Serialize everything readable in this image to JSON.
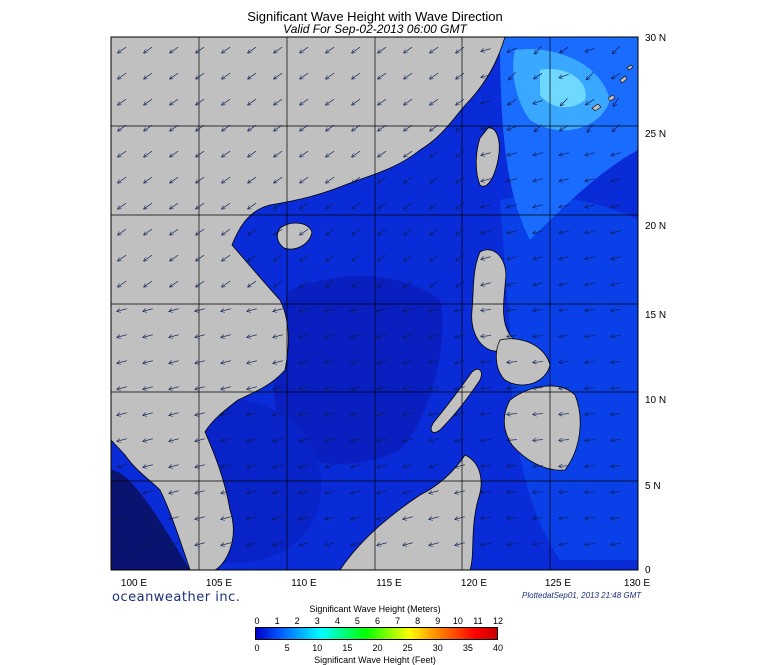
{
  "title": "Significant Wave Height with Wave Direction",
  "subtitle": "Valid For Sep-02-2013 06:00 GMT",
  "brand": "oceanweather inc.",
  "plotted": "PlottedatSep01, 2013 21:48 GMT",
  "map": {
    "lon_min": 100,
    "lon_max": 130,
    "lat_min": 0,
    "lat_max": 30,
    "lon_labels": [
      "100 E",
      "105 E",
      "110 E",
      "115 E",
      "120 E",
      "125 E",
      "130 E"
    ],
    "lat_labels": [
      "0",
      "5 N",
      "10 N",
      "15 N",
      "20 N",
      "25 N",
      "30 N"
    ],
    "land_color": "#c0c0c0",
    "coast_color": "#000000"
  },
  "colorbar": {
    "title_meters": "Significant Wave Height (Meters)",
    "title_feet": "Significant Wave Height (Feet)",
    "meter_ticks": [
      "0",
      "1",
      "2",
      "3",
      "4",
      "5",
      "6",
      "7",
      "8",
      "9",
      "10",
      "11",
      "12"
    ],
    "feet_ticks": [
      "0",
      "5",
      "10",
      "15",
      "20",
      "25",
      "30",
      "35",
      "40"
    ],
    "colors": [
      "#0000c8",
      "#0050ff",
      "#00aaff",
      "#00ffff",
      "#00ff80",
      "#00ff00",
      "#80ff00",
      "#ffff00",
      "#ffa000",
      "#ff5000",
      "#ff0000",
      "#c80000"
    ]
  }
}
